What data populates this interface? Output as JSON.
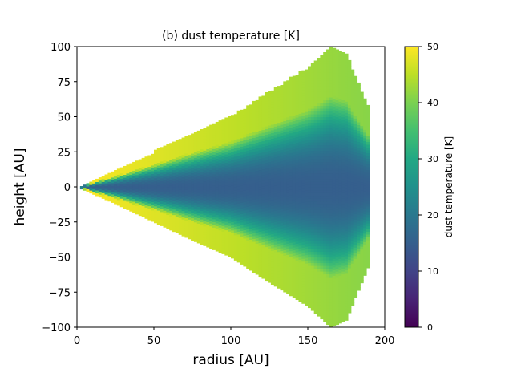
{
  "chart_data": {
    "type": "heatmap",
    "title": "(b) dust temperature [K]",
    "xlabel": "radius [AU]",
    "ylabel": "height [AU]",
    "xlim": [
      0,
      200
    ],
    "ylim": [
      -100,
      100
    ],
    "xticks": [
      0,
      50,
      100,
      150,
      200
    ],
    "yticks": [
      -100,
      -75,
      -50,
      -25,
      0,
      25,
      50,
      75,
      100
    ],
    "colorbar": {
      "label": "dust temperature [K]",
      "range": [
        0,
        50
      ],
      "ticks": [
        0,
        10,
        20,
        30,
        40,
        50
      ],
      "colormap": "viridis"
    },
    "field": {
      "description_values": "temperature at disk surface ~50 K at small radii decreasing to ~40 K outward; midplane ~15 K; cold wedge near midplane",
      "disk_outer_radius": 190,
      "surface_points": [
        [
          0,
          0
        ],
        [
          25,
          12
        ],
        [
          50,
          25
        ],
        [
          75,
          38
        ],
        [
          100,
          50
        ],
        [
          125,
          68
        ],
        [
          150,
          85
        ],
        [
          165,
          100
        ],
        [
          175,
          95
        ],
        [
          190,
          55
        ]
      ],
      "midplane_temperature": 15,
      "surface_temperature_inner": 50,
      "surface_temperature_outer": 41
    }
  }
}
